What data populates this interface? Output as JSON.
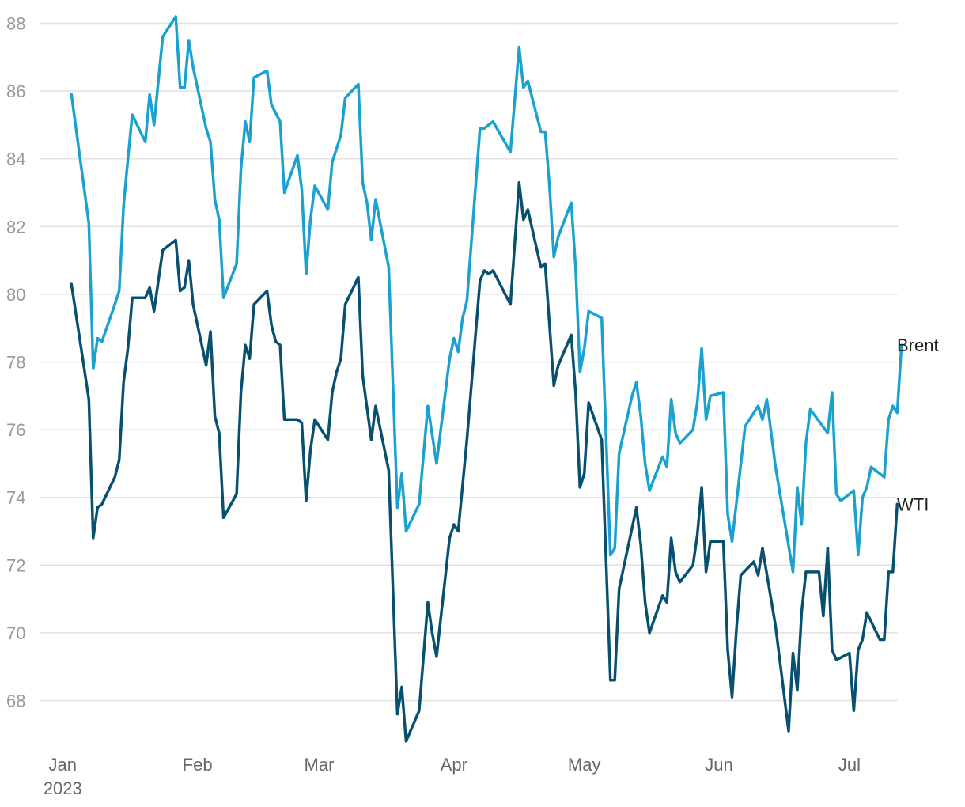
{
  "chart_data": {
    "type": "line",
    "title": "",
    "xlabel": "",
    "ylabel": "",
    "ylim": [
      67,
      88.5
    ],
    "yticks": [
      68,
      70,
      72,
      74,
      76,
      78,
      80,
      82,
      84,
      86,
      88
    ],
    "grid": true,
    "xticks": [
      {
        "date": "2023-01-01",
        "label": "Jan",
        "sublabel": "2023"
      },
      {
        "date": "2023-02-01",
        "label": "Feb",
        "sublabel": ""
      },
      {
        "date": "2023-03-01",
        "label": "Mar",
        "sublabel": ""
      },
      {
        "date": "2023-04-01",
        "label": "Apr",
        "sublabel": ""
      },
      {
        "date": "2023-05-01",
        "label": "May",
        "sublabel": ""
      },
      {
        "date": "2023-06-01",
        "label": "Jun",
        "sublabel": ""
      },
      {
        "date": "2023-07-01",
        "label": "Jul",
        "sublabel": ""
      }
    ],
    "series": [
      {
        "name": "Brent",
        "color": "#1ba1cf",
        "points": [
          [
            "2023-01-03",
            85.9
          ],
          [
            "2023-01-07",
            82.1
          ],
          [
            "2023-01-08",
            77.8
          ],
          [
            "2023-01-09",
            78.7
          ],
          [
            "2023-01-10",
            78.6
          ],
          [
            "2023-01-13",
            79.7
          ],
          [
            "2023-01-14",
            80.1
          ],
          [
            "2023-01-15",
            82.6
          ],
          [
            "2023-01-16",
            84.0
          ],
          [
            "2023-01-17",
            85.3
          ],
          [
            "2023-01-20",
            84.5
          ],
          [
            "2023-01-21",
            85.9
          ],
          [
            "2023-01-22",
            85.0
          ],
          [
            "2023-01-24",
            87.6
          ],
          [
            "2023-01-27",
            88.2
          ],
          [
            "2023-01-28",
            86.1
          ],
          [
            "2023-01-29",
            86.1
          ],
          [
            "2023-01-30",
            87.5
          ],
          [
            "2023-01-31",
            86.7
          ],
          [
            "2023-02-03",
            84.9
          ],
          [
            "2023-02-04",
            84.5
          ],
          [
            "2023-02-05",
            82.8
          ],
          [
            "2023-02-06",
            82.2
          ],
          [
            "2023-02-07",
            79.9
          ],
          [
            "2023-02-10",
            80.9
          ],
          [
            "2023-02-11",
            83.7
          ],
          [
            "2023-02-12",
            85.1
          ],
          [
            "2023-02-13",
            84.5
          ],
          [
            "2023-02-14",
            86.4
          ],
          [
            "2023-02-17",
            86.6
          ],
          [
            "2023-02-18",
            85.6
          ],
          [
            "2023-02-20",
            85.1
          ],
          [
            "2023-02-21",
            83.0
          ],
          [
            "2023-02-24",
            84.1
          ],
          [
            "2023-02-25",
            83.1
          ],
          [
            "2023-02-26",
            80.6
          ],
          [
            "2023-02-27",
            82.2
          ],
          [
            "2023-02-28",
            83.2
          ],
          [
            "2023-03-03",
            82.5
          ],
          [
            "2023-03-04",
            83.9
          ],
          [
            "2023-03-06",
            84.7
          ],
          [
            "2023-03-07",
            85.8
          ],
          [
            "2023-03-10",
            86.2
          ],
          [
            "2023-03-11",
            83.3
          ],
          [
            "2023-03-12",
            82.7
          ],
          [
            "2023-03-13",
            81.6
          ],
          [
            "2023-03-14",
            82.8
          ],
          [
            "2023-03-17",
            80.8
          ],
          [
            "2023-03-19",
            73.7
          ],
          [
            "2023-03-20",
            74.7
          ],
          [
            "2023-03-21",
            73.0
          ],
          [
            "2023-03-24",
            73.8
          ],
          [
            "2023-03-26",
            76.7
          ],
          [
            "2023-03-28",
            75.0
          ],
          [
            "2023-03-31",
            78.1
          ],
          [
            "2023-04-01",
            78.7
          ],
          [
            "2023-04-02",
            78.3
          ],
          [
            "2023-04-03",
            79.3
          ],
          [
            "2023-04-04",
            79.8
          ],
          [
            "2023-04-07",
            84.9
          ],
          [
            "2023-04-08",
            84.9
          ],
          [
            "2023-04-09",
            85.0
          ],
          [
            "2023-04-10",
            85.1
          ],
          [
            "2023-04-14",
            84.2
          ],
          [
            "2023-04-16",
            87.3
          ],
          [
            "2023-04-17",
            86.1
          ],
          [
            "2023-04-18",
            86.3
          ],
          [
            "2023-04-21",
            84.8
          ],
          [
            "2023-04-22",
            84.8
          ],
          [
            "2023-04-23",
            83.2
          ],
          [
            "2023-04-24",
            81.1
          ],
          [
            "2023-04-25",
            81.7
          ],
          [
            "2023-04-28",
            82.7
          ],
          [
            "2023-04-29",
            80.8
          ],
          [
            "2023-04-30",
            77.7
          ],
          [
            "2023-05-01",
            78.4
          ],
          [
            "2023-05-02",
            79.5
          ],
          [
            "2023-05-05",
            79.3
          ],
          [
            "2023-05-07",
            72.3
          ],
          [
            "2023-05-08",
            72.5
          ],
          [
            "2023-05-09",
            75.3
          ],
          [
            "2023-05-12",
            77.0
          ],
          [
            "2023-05-13",
            77.4
          ],
          [
            "2023-05-14",
            76.4
          ],
          [
            "2023-05-15",
            75.0
          ],
          [
            "2023-05-16",
            74.2
          ],
          [
            "2023-05-19",
            75.2
          ],
          [
            "2023-05-20",
            74.9
          ],
          [
            "2023-05-21",
            76.9
          ],
          [
            "2023-05-22",
            75.9
          ],
          [
            "2023-05-23",
            75.6
          ],
          [
            "2023-05-26",
            76.0
          ],
          [
            "2023-05-27",
            76.8
          ],
          [
            "2023-05-28",
            78.4
          ],
          [
            "2023-05-29",
            76.3
          ],
          [
            "2023-05-30",
            77.0
          ],
          [
            "2023-06-02",
            77.1
          ],
          [
            "2023-06-03",
            73.5
          ],
          [
            "2023-06-04",
            72.7
          ],
          [
            "2023-06-07",
            76.1
          ],
          [
            "2023-06-10",
            76.7
          ],
          [
            "2023-06-11",
            76.3
          ],
          [
            "2023-06-12",
            76.9
          ],
          [
            "2023-06-14",
            74.9
          ],
          [
            "2023-06-18",
            71.8
          ],
          [
            "2023-06-19",
            74.3
          ],
          [
            "2023-06-20",
            73.2
          ],
          [
            "2023-06-21",
            75.6
          ],
          [
            "2023-06-22",
            76.6
          ],
          [
            "2023-06-26",
            75.9
          ],
          [
            "2023-06-27",
            77.1
          ],
          [
            "2023-06-28",
            74.1
          ],
          [
            "2023-06-29",
            73.9
          ],
          [
            "2023-07-02",
            74.2
          ],
          [
            "2023-07-03",
            72.3
          ],
          [
            "2023-07-04",
            74.0
          ],
          [
            "2023-07-05",
            74.3
          ],
          [
            "2023-07-06",
            74.9
          ],
          [
            "2023-07-09",
            74.6
          ],
          [
            "2023-07-10",
            76.3
          ],
          [
            "2023-07-11",
            76.7
          ],
          [
            "2023-07-12",
            76.5
          ],
          [
            "2023-07-13",
            78.5
          ]
        ]
      },
      {
        "name": "WTI",
        "color": "#08506f",
        "points": [
          [
            "2023-01-03",
            80.3
          ],
          [
            "2023-01-07",
            76.9
          ],
          [
            "2023-01-08",
            72.8
          ],
          [
            "2023-01-09",
            73.7
          ],
          [
            "2023-01-10",
            73.8
          ],
          [
            "2023-01-13",
            74.6
          ],
          [
            "2023-01-14",
            75.1
          ],
          [
            "2023-01-15",
            77.4
          ],
          [
            "2023-01-16",
            78.4
          ],
          [
            "2023-01-17",
            79.9
          ],
          [
            "2023-01-20",
            79.9
          ],
          [
            "2023-01-21",
            80.2
          ],
          [
            "2023-01-22",
            79.5
          ],
          [
            "2023-01-24",
            81.3
          ],
          [
            "2023-01-27",
            81.6
          ],
          [
            "2023-01-28",
            80.1
          ],
          [
            "2023-01-29",
            80.2
          ],
          [
            "2023-01-30",
            81.0
          ],
          [
            "2023-01-31",
            79.7
          ],
          [
            "2023-02-03",
            77.9
          ],
          [
            "2023-02-04",
            78.9
          ],
          [
            "2023-02-05",
            76.4
          ],
          [
            "2023-02-06",
            75.9
          ],
          [
            "2023-02-07",
            73.4
          ],
          [
            "2023-02-10",
            74.1
          ],
          [
            "2023-02-11",
            77.1
          ],
          [
            "2023-02-12",
            78.5
          ],
          [
            "2023-02-13",
            78.1
          ],
          [
            "2023-02-14",
            79.7
          ],
          [
            "2023-02-17",
            80.1
          ],
          [
            "2023-02-18",
            79.1
          ],
          [
            "2023-02-19",
            78.6
          ],
          [
            "2023-02-20",
            78.5
          ],
          [
            "2023-02-21",
            76.3
          ],
          [
            "2023-02-24",
            76.3
          ],
          [
            "2023-02-25",
            76.2
          ],
          [
            "2023-02-26",
            73.9
          ],
          [
            "2023-02-27",
            75.4
          ],
          [
            "2023-02-28",
            76.3
          ],
          [
            "2023-03-03",
            75.7
          ],
          [
            "2023-03-04",
            77.1
          ],
          [
            "2023-03-05",
            77.7
          ],
          [
            "2023-03-06",
            78.1
          ],
          [
            "2023-03-07",
            79.7
          ],
          [
            "2023-03-10",
            80.5
          ],
          [
            "2023-03-11",
            77.6
          ],
          [
            "2023-03-13",
            75.7
          ],
          [
            "2023-03-14",
            76.7
          ],
          [
            "2023-03-17",
            74.8
          ],
          [
            "2023-03-19",
            67.6
          ],
          [
            "2023-03-20",
            68.4
          ],
          [
            "2023-03-21",
            66.8
          ],
          [
            "2023-03-24",
            67.7
          ],
          [
            "2023-03-26",
            70.9
          ],
          [
            "2023-03-27",
            70.0
          ],
          [
            "2023-03-28",
            69.3
          ],
          [
            "2023-03-31",
            72.8
          ],
          [
            "2023-04-01",
            73.2
          ],
          [
            "2023-04-02",
            73.0
          ],
          [
            "2023-04-04",
            75.7
          ],
          [
            "2023-04-07",
            80.4
          ],
          [
            "2023-04-08",
            80.7
          ],
          [
            "2023-04-09",
            80.6
          ],
          [
            "2023-04-10",
            80.7
          ],
          [
            "2023-04-14",
            79.7
          ],
          [
            "2023-04-16",
            83.3
          ],
          [
            "2023-04-17",
            82.2
          ],
          [
            "2023-04-18",
            82.5
          ],
          [
            "2023-04-21",
            80.8
          ],
          [
            "2023-04-22",
            80.9
          ],
          [
            "2023-04-23",
            79.1
          ],
          [
            "2023-04-24",
            77.3
          ],
          [
            "2023-04-25",
            77.9
          ],
          [
            "2023-04-28",
            78.8
          ],
          [
            "2023-04-29",
            77.1
          ],
          [
            "2023-04-30",
            74.3
          ],
          [
            "2023-05-01",
            74.7
          ],
          [
            "2023-05-02",
            76.8
          ],
          [
            "2023-05-05",
            75.7
          ],
          [
            "2023-05-07",
            68.6
          ],
          [
            "2023-05-08",
            68.6
          ],
          [
            "2023-05-09",
            71.3
          ],
          [
            "2023-05-12",
            73.1
          ],
          [
            "2023-05-13",
            73.7
          ],
          [
            "2023-05-14",
            72.6
          ],
          [
            "2023-05-15",
            70.9
          ],
          [
            "2023-05-16",
            70.0
          ],
          [
            "2023-05-19",
            71.1
          ],
          [
            "2023-05-20",
            70.9
          ],
          [
            "2023-05-21",
            72.8
          ],
          [
            "2023-05-22",
            71.8
          ],
          [
            "2023-05-23",
            71.5
          ],
          [
            "2023-05-26",
            72.0
          ],
          [
            "2023-05-27",
            72.9
          ],
          [
            "2023-05-28",
            74.3
          ],
          [
            "2023-05-29",
            71.8
          ],
          [
            "2023-05-30",
            72.7
          ],
          [
            "2023-06-02",
            72.7
          ],
          [
            "2023-06-03",
            69.5
          ],
          [
            "2023-06-04",
            68.1
          ],
          [
            "2023-06-05",
            70.1
          ],
          [
            "2023-06-06",
            71.7
          ],
          [
            "2023-06-09",
            72.1
          ],
          [
            "2023-06-10",
            71.7
          ],
          [
            "2023-06-11",
            72.5
          ],
          [
            "2023-06-14",
            70.2
          ],
          [
            "2023-06-17",
            67.1
          ],
          [
            "2023-06-18",
            69.4
          ],
          [
            "2023-06-19",
            68.3
          ],
          [
            "2023-06-20",
            70.6
          ],
          [
            "2023-06-21",
            71.8
          ],
          [
            "2023-06-24",
            71.8
          ],
          [
            "2023-06-25",
            70.5
          ],
          [
            "2023-06-26",
            72.5
          ],
          [
            "2023-06-27",
            69.5
          ],
          [
            "2023-06-28",
            69.2
          ],
          [
            "2023-07-01",
            69.4
          ],
          [
            "2023-07-02",
            67.7
          ],
          [
            "2023-07-03",
            69.5
          ],
          [
            "2023-07-04",
            69.8
          ],
          [
            "2023-07-05",
            70.6
          ],
          [
            "2023-07-08",
            69.8
          ],
          [
            "2023-07-09",
            69.8
          ],
          [
            "2023-07-10",
            71.8
          ],
          [
            "2023-07-11",
            71.8
          ],
          [
            "2023-07-12",
            73.8
          ]
        ]
      }
    ]
  }
}
